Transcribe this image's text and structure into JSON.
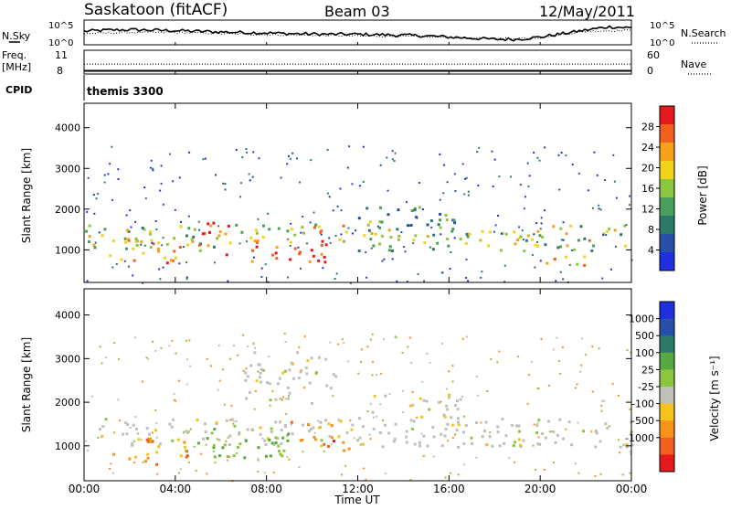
{
  "header": {
    "station": "Saskatoon (fitACF)",
    "beam": "Beam 03",
    "date": "12/May/2011"
  },
  "chart_data": [
    {
      "type": "line",
      "panel": "noise",
      "left_label": "N.Sky",
      "right_label": "N.Search",
      "left_ticks": [
        "10^5",
        "10^0"
      ],
      "right_ticks": [
        "10^5",
        "10^0"
      ],
      "series": [
        {
          "name": "N.Sky",
          "style": "solid",
          "x": [
            0,
            1,
            2,
            3,
            4,
            5,
            6,
            7,
            8,
            9,
            10,
            11,
            12,
            13,
            14,
            15,
            16,
            17,
            18,
            19,
            20,
            21,
            22,
            23,
            24
          ],
          "y_frac": [
            0.55,
            0.6,
            0.62,
            0.6,
            0.58,
            0.55,
            0.52,
            0.5,
            0.48,
            0.45,
            0.43,
            0.42,
            0.42,
            0.4,
            0.38,
            0.35,
            0.3,
            0.25,
            0.2,
            0.2,
            0.3,
            0.45,
            0.6,
            0.75,
            0.7
          ]
        },
        {
          "name": "N.Search",
          "style": "dotted",
          "x": [
            0,
            2,
            4,
            6,
            8,
            10,
            12,
            14,
            16,
            18,
            20,
            22,
            24
          ],
          "y_frac": [
            0.45,
            0.5,
            0.5,
            0.45,
            0.4,
            0.38,
            0.35,
            0.33,
            0.28,
            0.22,
            0.28,
            0.55,
            0.6
          ]
        }
      ]
    },
    {
      "type": "line",
      "panel": "frequency",
      "left_label": "Freq.",
      "left_unit": "[MHz]",
      "right_label": "Nave",
      "left_ticks": [
        "11",
        "8"
      ],
      "right_ticks": [
        "60",
        "0"
      ],
      "series": [
        {
          "name": "Freq.",
          "style": "solid",
          "x": [
            0,
            24
          ],
          "y": [
            8.4,
            8.4
          ]
        },
        {
          "name": "Nave",
          "style": "dotted",
          "x": [
            0,
            24
          ],
          "y": [
            25,
            25
          ]
        }
      ]
    },
    {
      "type": "table",
      "panel": "cpid",
      "label": "CPID",
      "value": "themis 3300"
    },
    {
      "type": "heatmap",
      "panel": "power",
      "ylabel": "Slant Range [km]",
      "ylim": [
        200,
        4600
      ],
      "y_ticks": [
        1000,
        2000,
        3000,
        4000
      ],
      "xlim": [
        0,
        24
      ],
      "colorbar": {
        "label": "Power [dB]",
        "ticks": [
          4,
          8,
          12,
          16,
          20,
          24,
          28
        ],
        "range": [
          0,
          32
        ],
        "colors": [
          "#1f30e0",
          "#2850a8",
          "#2e7a6a",
          "#4aa05a",
          "#8cc63f",
          "#f2d21b",
          "#f7a21a",
          "#f06020",
          "#e41a1c"
        ]
      },
      "regions": [
        {
          "t": [
            0.0,
            6.0
          ],
          "r": [
            1000,
            1650
          ],
          "level": 16
        },
        {
          "t": [
            1.0,
            4.5
          ],
          "r": [
            700,
            1300
          ],
          "level": 22
        },
        {
          "t": [
            5.0,
            6.3
          ],
          "r": [
            900,
            1700
          ],
          "level": 26
        },
        {
          "t": [
            7.0,
            10.8
          ],
          "r": [
            700,
            1300
          ],
          "level": 28
        },
        {
          "t": [
            6.3,
            11.8
          ],
          "r": [
            1200,
            1700
          ],
          "level": 18
        },
        {
          "t": [
            12.0,
            24.0
          ],
          "r": [
            1000,
            1650
          ],
          "level": 14
        },
        {
          "t": [
            12.0,
            16.5
          ],
          "r": [
            1500,
            2100
          ],
          "level": 12
        },
        {
          "t": [
            20.0,
            22.0
          ],
          "r": [
            550,
            900
          ],
          "level": 18
        }
      ]
    },
    {
      "type": "heatmap",
      "panel": "velocity",
      "ylabel": "Slant Range [km]",
      "ylim": [
        200,
        4600
      ],
      "y_ticks": [
        1000,
        2000,
        3000,
        4000
      ],
      "xlim": [
        0,
        24
      ],
      "x_ticks": [
        "00:00",
        "04:00",
        "08:00",
        "12:00",
        "16:00",
        "20:00",
        "00:00"
      ],
      "xlabel": "Time UT",
      "colorbar": {
        "label": "Velocity [m s⁻¹]",
        "ticks": [
          "1000",
          "500",
          "100",
          "25",
          "-25",
          "-100",
          "-500",
          "-1000"
        ],
        "colors": [
          "#1f30e0",
          "#2850a8",
          "#2e7a6a",
          "#56a840",
          "#8cc63f",
          "#c0c0b8",
          "#f7c21a",
          "#f7921a",
          "#f06020",
          "#e41a1c"
        ]
      },
      "regions": [
        {
          "t": [
            0.0,
            24.0
          ],
          "r": [
            1000,
            1650
          ],
          "v": 0
        },
        {
          "t": [
            1.0,
            4.5
          ],
          "r": [
            600,
            1200
          ],
          "v": -250
        },
        {
          "t": [
            4.5,
            9.0
          ],
          "r": [
            700,
            1500
          ],
          "v": 300
        },
        {
          "t": [
            9.0,
            11.8
          ],
          "r": [
            900,
            1600
          ],
          "v": -400
        },
        {
          "t": [
            12.0,
            16.5
          ],
          "r": [
            1500,
            2200
          ],
          "v": 0
        },
        {
          "t": [
            7.0,
            11.0
          ],
          "r": [
            2000,
            3200
          ],
          "v": 0
        }
      ]
    }
  ]
}
